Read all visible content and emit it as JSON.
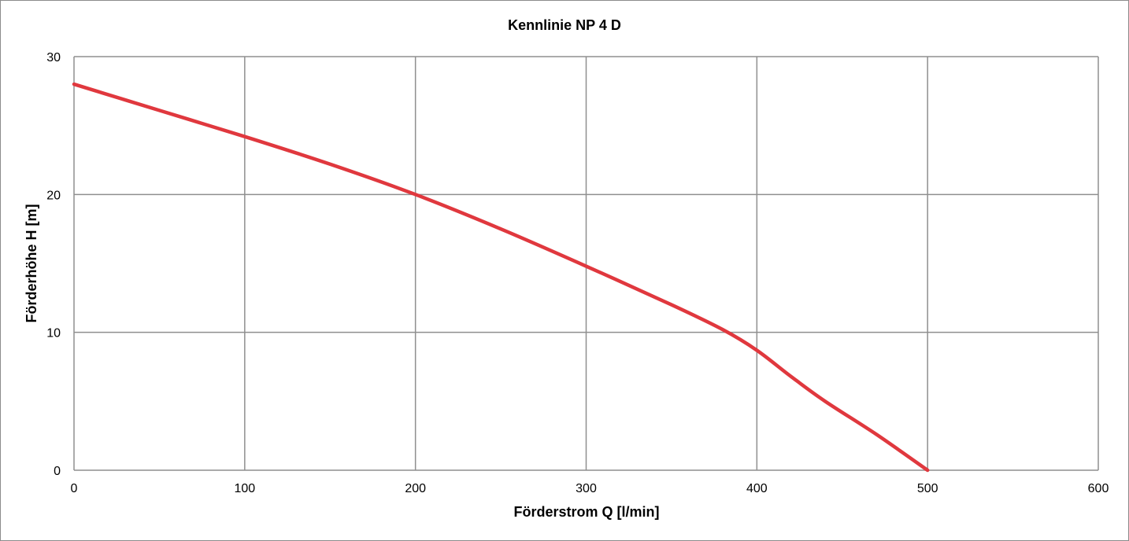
{
  "chart_data": {
    "type": "line",
    "title": "Kennlinie NP 4 D",
    "xlabel": "Förderstrom Q [l/min]",
    "ylabel": "Förderhöhe H [m]",
    "xlim": [
      0,
      600
    ],
    "ylim": [
      0,
      30
    ],
    "x_ticks": [
      0,
      100,
      200,
      300,
      400,
      500,
      600
    ],
    "y_ticks": [
      0,
      10,
      20,
      30
    ],
    "grid": true,
    "legend": "none",
    "series": [
      {
        "color": "#e0383e",
        "x": [
          0,
          50,
          100,
          150,
          200,
          250,
          300,
          350,
          380,
          400,
          420,
          440,
          470,
          500
        ],
        "y": [
          28,
          26.1,
          24.2,
          22.2,
          20,
          17.5,
          14.8,
          12,
          10.2,
          8.7,
          6.8,
          5,
          2.6,
          0
        ]
      }
    ]
  }
}
